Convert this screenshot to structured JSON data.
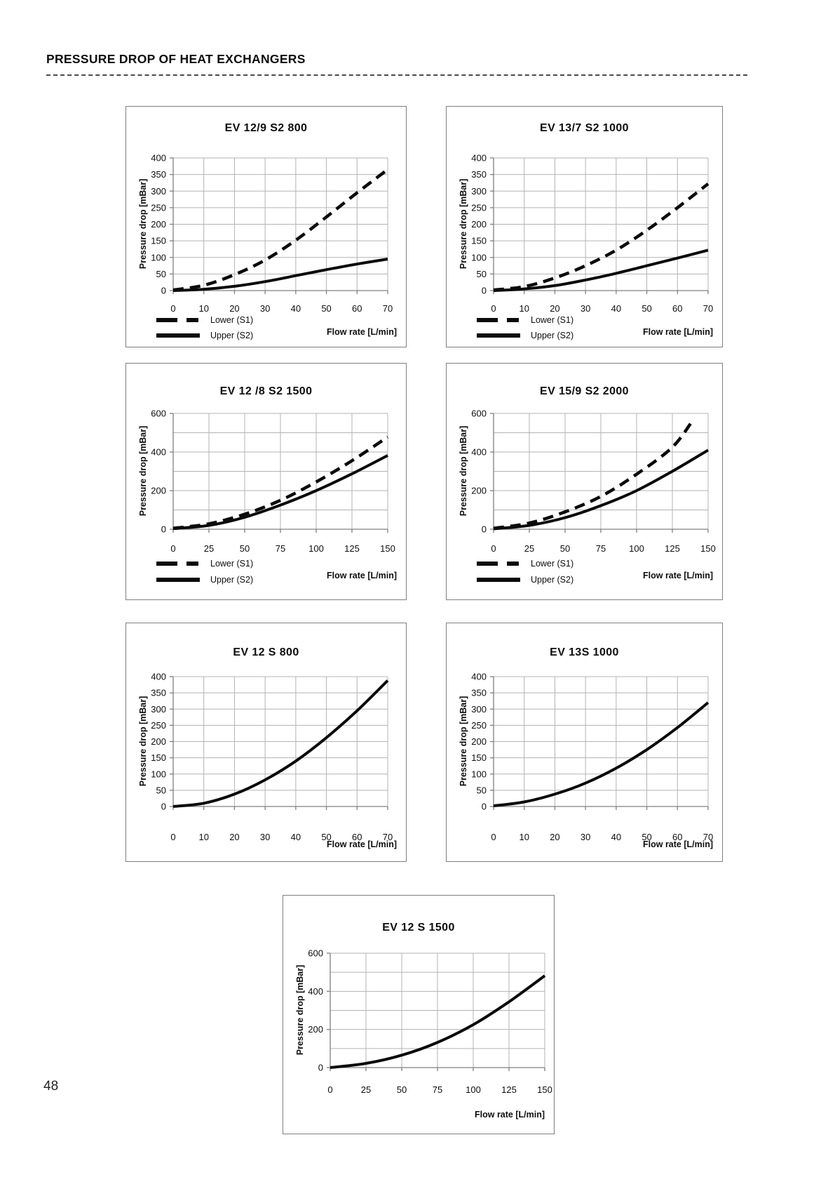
{
  "header": {
    "title": "PRESSURE DROP OF HEAT EXCHANGERS"
  },
  "page_number": "48",
  "chart_data": [
    {
      "type": "line",
      "title": "EV 12/9 S2 800",
      "ylabel": "Pressure drop [mBar]",
      "xlabel": "Flow rate [L/min]",
      "xlim": [
        0,
        70
      ],
      "ylim": [
        0,
        400
      ],
      "xticks": [
        0,
        10,
        20,
        30,
        40,
        50,
        60,
        70
      ],
      "yticks": [
        0,
        50,
        100,
        150,
        200,
        250,
        300,
        350,
        400
      ],
      "grid": true,
      "legend_position": "bottom-left",
      "series": [
        {
          "name": "Lower (S1)",
          "style": "dashed",
          "points": [
            [
              0,
              2
            ],
            [
              10,
              16
            ],
            [
              20,
              48
            ],
            [
              30,
              92
            ],
            [
              40,
              152
            ],
            [
              50,
              222
            ],
            [
              60,
              295
            ],
            [
              70,
              365
            ]
          ]
        },
        {
          "name": "Upper (S2)",
          "style": "solid",
          "points": [
            [
              0,
              0
            ],
            [
              10,
              4
            ],
            [
              20,
              13
            ],
            [
              30,
              27
            ],
            [
              40,
              45
            ],
            [
              50,
              63
            ],
            [
              60,
              80
            ],
            [
              70,
              95
            ]
          ]
        }
      ]
    },
    {
      "type": "line",
      "title": "EV 13/7 S2 1000",
      "ylabel": "Pressure drop [mBar]",
      "xlabel": "Flow rate [L/min]",
      "xlim": [
        0,
        70
      ],
      "ylim": [
        0,
        400
      ],
      "xticks": [
        0,
        10,
        20,
        30,
        40,
        50,
        60,
        70
      ],
      "yticks": [
        0,
        50,
        100,
        150,
        200,
        250,
        300,
        350,
        400
      ],
      "grid": true,
      "legend_position": "bottom-left",
      "series": [
        {
          "name": "Lower (S1)",
          "style": "dashed",
          "points": [
            [
              0,
              2
            ],
            [
              10,
              12
            ],
            [
              20,
              38
            ],
            [
              30,
              75
            ],
            [
              40,
              122
            ],
            [
              50,
              182
            ],
            [
              60,
              250
            ],
            [
              70,
              322
            ]
          ]
        },
        {
          "name": "Upper (S2)",
          "style": "solid",
          "points": [
            [
              0,
              0
            ],
            [
              10,
              5
            ],
            [
              20,
              15
            ],
            [
              30,
              32
            ],
            [
              40,
              52
            ],
            [
              50,
              75
            ],
            [
              60,
              98
            ],
            [
              70,
              122
            ]
          ]
        }
      ]
    },
    {
      "type": "line",
      "title": "EV 12 /8 S2 1500",
      "ylabel": "Pressure drop [mBar]",
      "xlabel": "Flow rate [L/min]",
      "xlim": [
        0,
        150
      ],
      "ylim": [
        0,
        600
      ],
      "xticks": [
        0,
        25,
        50,
        75,
        100,
        125,
        150
      ],
      "yticks": [
        0,
        200,
        400,
        600
      ],
      "grid": true,
      "legend_position": "bottom-left",
      "series": [
        {
          "name": "Lower (S1)",
          "style": "dashed",
          "points": [
            [
              0,
              5
            ],
            [
              25,
              28
            ],
            [
              50,
              78
            ],
            [
              75,
              150
            ],
            [
              100,
              245
            ],
            [
              125,
              355
            ],
            [
              150,
              478
            ]
          ]
        },
        {
          "name": "Upper (S2)",
          "style": "solid",
          "points": [
            [
              0,
              3
            ],
            [
              25,
              20
            ],
            [
              50,
              62
            ],
            [
              75,
              125
            ],
            [
              100,
              200
            ],
            [
              125,
              287
            ],
            [
              150,
              382
            ]
          ]
        }
      ]
    },
    {
      "type": "line",
      "title": "EV 15/9 S2 2000",
      "ylabel": "Pressure drop [mBar]",
      "xlabel": "Flow rate [L/min]",
      "xlim": [
        0,
        150
      ],
      "ylim": [
        0,
        600
      ],
      "xticks": [
        0,
        25,
        50,
        75,
        100,
        125,
        150
      ],
      "yticks": [
        0,
        200,
        400,
        600
      ],
      "grid": true,
      "legend_position": "bottom-left",
      "series": [
        {
          "name": "Lower (S1)",
          "style": "dashed",
          "points": [
            [
              0,
              5
            ],
            [
              25,
              32
            ],
            [
              50,
              90
            ],
            [
              75,
              170
            ],
            [
              100,
              285
            ],
            [
              125,
              425
            ],
            [
              140,
              572
            ]
          ]
        },
        {
          "name": "Upper (S2)",
          "style": "solid",
          "points": [
            [
              0,
              2
            ],
            [
              25,
              20
            ],
            [
              50,
              60
            ],
            [
              75,
              122
            ],
            [
              100,
              200
            ],
            [
              125,
              300
            ],
            [
              150,
              410
            ]
          ]
        }
      ]
    },
    {
      "type": "line",
      "title": "EV 12 S 800",
      "ylabel": "Pressure drop [mBar]",
      "xlabel": "Flow rate [L/min]",
      "xlim": [
        0,
        70
      ],
      "ylim": [
        0,
        400
      ],
      "xticks": [
        0,
        10,
        20,
        30,
        40,
        50,
        60,
        70
      ],
      "yticks": [
        0,
        50,
        100,
        150,
        200,
        250,
        300,
        350,
        400
      ],
      "grid": true,
      "series": [
        {
          "style": "solid",
          "points": [
            [
              0,
              0
            ],
            [
              10,
              10
            ],
            [
              20,
              38
            ],
            [
              30,
              82
            ],
            [
              40,
              140
            ],
            [
              50,
              212
            ],
            [
              60,
              295
            ],
            [
              70,
              388
            ]
          ]
        }
      ]
    },
    {
      "type": "line",
      "title": "EV 13S 1000",
      "ylabel": "Pressure drop [mBar]",
      "xlabel": "Flow rate [L/min]",
      "xlim": [
        0,
        70
      ],
      "ylim": [
        0,
        400
      ],
      "xticks": [
        0,
        10,
        20,
        30,
        40,
        50,
        60,
        70
      ],
      "yticks": [
        0,
        50,
        100,
        150,
        200,
        250,
        300,
        350,
        400
      ],
      "grid": true,
      "series": [
        {
          "style": "solid",
          "points": [
            [
              0,
              2
            ],
            [
              10,
              14
            ],
            [
              20,
              38
            ],
            [
              30,
              72
            ],
            [
              40,
              118
            ],
            [
              50,
              175
            ],
            [
              60,
              243
            ],
            [
              70,
              320
            ]
          ]
        }
      ]
    },
    {
      "type": "line",
      "title": "EV 12 S 1500",
      "ylabel": "Pressure drop [mBar]",
      "xlabel": "Flow rate [L/min]",
      "xlim": [
        0,
        150
      ],
      "ylim": [
        0,
        600
      ],
      "xticks": [
        0,
        25,
        50,
        75,
        100,
        125,
        150
      ],
      "yticks": [
        0,
        200,
        400,
        600
      ],
      "grid": true,
      "series": [
        {
          "style": "solid",
          "points": [
            [
              0,
              0
            ],
            [
              25,
              22
            ],
            [
              50,
              65
            ],
            [
              75,
              132
            ],
            [
              100,
              225
            ],
            [
              125,
              345
            ],
            [
              150,
              482
            ]
          ]
        }
      ]
    }
  ]
}
